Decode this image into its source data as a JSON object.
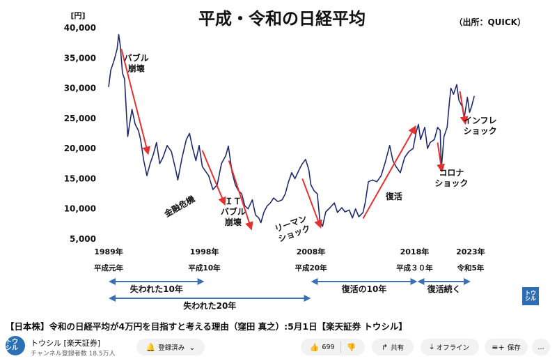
{
  "chart_data": {
    "type": "line",
    "title": "平成・令和の日経平均",
    "source": "（出所：QUICK）",
    "ylabel": "[円]",
    "ylim": [
      5000,
      40000
    ],
    "yticks": [
      5000,
      10000,
      15000,
      20000,
      25000,
      30000,
      35000,
      40000
    ],
    "ytick_labels": [
      "5,000",
      "10,000",
      "15,000",
      "20,000",
      "25,000",
      "30,000",
      "35,000",
      "40,000"
    ],
    "xlim": [
      1989,
      2023.4
    ],
    "xticks": [
      {
        "x": 1989,
        "year": "1989年",
        "era": "平成元年"
      },
      {
        "x": 1998,
        "year": "1998年",
        "era": "平成10年"
      },
      {
        "x": 2008,
        "year": "2008年",
        "era": "平成20年"
      },
      {
        "x": 2018,
        "year": "2018年",
        "era": "平成３０年"
      },
      {
        "x": 2023,
        "year": "2023年",
        "era": "令和5年"
      }
    ],
    "series": [
      {
        "color": "#1f2a6b",
        "points": [
          [
            1989.0,
            30200
          ],
          [
            1989.2,
            33000
          ],
          [
            1989.5,
            34500
          ],
          [
            1989.8,
            36500
          ],
          [
            1989.95,
            38900
          ],
          [
            1990.1,
            37000
          ],
          [
            1990.3,
            32500
          ],
          [
            1990.5,
            31500
          ],
          [
            1990.7,
            25000
          ],
          [
            1990.8,
            22000
          ],
          [
            1990.95,
            23800
          ],
          [
            1991.2,
            26500
          ],
          [
            1991.5,
            24000
          ],
          [
            1991.8,
            23000
          ],
          [
            1992.0,
            21500
          ],
          [
            1992.3,
            18000
          ],
          [
            1992.6,
            15500
          ],
          [
            1992.9,
            17500
          ],
          [
            1993.2,
            19000
          ],
          [
            1993.5,
            21000
          ],
          [
            1993.8,
            17500
          ],
          [
            1994.1,
            18500
          ],
          [
            1994.5,
            20500
          ],
          [
            1994.9,
            19500
          ],
          [
            1995.3,
            16500
          ],
          [
            1995.5,
            14800
          ],
          [
            1995.9,
            18500
          ],
          [
            1996.3,
            21500
          ],
          [
            1996.6,
            22500
          ],
          [
            1996.9,
            20000
          ],
          [
            1997.2,
            18000
          ],
          [
            1997.5,
            20500
          ],
          [
            1997.8,
            17000
          ],
          [
            1998.0,
            16500
          ],
          [
            1998.4,
            15500
          ],
          [
            1998.8,
            13200
          ],
          [
            1999.2,
            14000
          ],
          [
            1999.6,
            17500
          ],
          [
            2000.0,
            18800
          ],
          [
            2000.25,
            20400
          ],
          [
            2000.6,
            16000
          ],
          [
            2000.9,
            14000
          ],
          [
            2001.2,
            13000
          ],
          [
            2001.5,
            12500
          ],
          [
            2001.8,
            10500
          ],
          [
            2002.1,
            10000
          ],
          [
            2002.5,
            11500
          ],
          [
            2002.8,
            9000
          ],
          [
            2003.1,
            8500
          ],
          [
            2003.3,
            7700
          ],
          [
            2003.6,
            9500
          ],
          [
            2003.9,
            10500
          ],
          [
            2004.2,
            11000
          ],
          [
            2004.5,
            11800
          ],
          [
            2004.9,
            11200
          ],
          [
            2005.3,
            11500
          ],
          [
            2005.6,
            12500
          ],
          [
            2005.9,
            14500
          ],
          [
            2006.2,
            16000
          ],
          [
            2006.5,
            15000
          ],
          [
            2006.9,
            16500
          ],
          [
            2007.2,
            17500
          ],
          [
            2007.5,
            18200
          ],
          [
            2007.8,
            16500
          ],
          [
            2008.0,
            14000
          ],
          [
            2008.3,
            13000
          ],
          [
            2008.6,
            12500
          ],
          [
            2008.85,
            8000
          ],
          [
            2009.1,
            7100
          ],
          [
            2009.4,
            9500
          ],
          [
            2009.8,
            10200
          ],
          [
            2010.2,
            11000
          ],
          [
            2010.5,
            9400
          ],
          [
            2010.9,
            10200
          ],
          [
            2011.2,
            9500
          ],
          [
            2011.6,
            9800
          ],
          [
            2011.9,
            8500
          ],
          [
            2012.2,
            10000
          ],
          [
            2012.5,
            8700
          ],
          [
            2012.9,
            9400
          ],
          [
            2013.1,
            11000
          ],
          [
            2013.4,
            14500
          ],
          [
            2013.8,
            14800
          ],
          [
            2014.2,
            14500
          ],
          [
            2014.6,
            15500
          ],
          [
            2014.95,
            17500
          ],
          [
            2015.4,
            20500
          ],
          [
            2015.7,
            18000
          ],
          [
            2016.0,
            17000
          ],
          [
            2016.4,
            16000
          ],
          [
            2016.8,
            18500
          ],
          [
            2017.2,
            19500
          ],
          [
            2017.6,
            20000
          ],
          [
            2017.9,
            22800
          ],
          [
            2018.1,
            24000
          ],
          [
            2018.3,
            21500
          ],
          [
            2018.7,
            23500
          ],
          [
            2018.95,
            20000
          ],
          [
            2019.2,
            21000
          ],
          [
            2019.6,
            21500
          ],
          [
            2019.9,
            23500
          ],
          [
            2020.15,
            23000
          ],
          [
            2020.25,
            16500
          ],
          [
            2020.5,
            22000
          ],
          [
            2020.8,
            23500
          ],
          [
            2021.0,
            27500
          ],
          [
            2021.15,
            30000
          ],
          [
            2021.4,
            29000
          ],
          [
            2021.7,
            30600
          ],
          [
            2021.9,
            28000
          ],
          [
            2022.2,
            27000
          ],
          [
            2022.4,
            25000
          ],
          [
            2022.7,
            28500
          ],
          [
            2022.9,
            26000
          ],
          [
            2023.1,
            27000
          ],
          [
            2023.35,
            28700
          ]
        ]
      }
    ],
    "arrows": [
      {
        "from": [
          1990.2,
          36500
        ],
        "to": [
          1992.7,
          19200
        ]
      },
      {
        "from": [
          1997.8,
          19700
        ],
        "to": [
          1999.9,
          10800
        ]
      },
      {
        "from": [
          2000.3,
          18000
        ],
        "to": [
          2002.4,
          6700
        ]
      },
      {
        "from": [
          2007.2,
          15000
        ],
        "to": [
          2008.9,
          7000
        ]
      },
      {
        "from": [
          2012.9,
          8400
        ],
        "to": [
          2017.8,
          23600
        ]
      },
      {
        "from": [
          2019.9,
          21000
        ],
        "to": [
          2020.3,
          16300
        ]
      },
      {
        "from": [
          2022.0,
          29500
        ],
        "to": [
          2022.5,
          24200
        ]
      }
    ],
    "annotations": [
      {
        "lines": [
          "バブル",
          "崩壊"
        ],
        "x": 1991.6,
        "y": 34500
      },
      {
        "lines": [
          "金融危機"
        ],
        "x": 1995.8,
        "y": 10000,
        "rotate": -30
      },
      {
        "lines": [
          "ＩＴ",
          "バブル",
          "崩壊"
        ],
        "x": 2000.7,
        "y": 10800
      },
      {
        "lines": [
          "リーマン",
          "ショック"
        ],
        "x": 2006.2,
        "y": 7100,
        "rotate": -20
      },
      {
        "lines": [
          "復活"
        ],
        "x": 2015.8,
        "y": 11600
      },
      {
        "lines": [
          "コロナ",
          "ショック"
        ],
        "x": 2021.2,
        "y": 15500
      },
      {
        "lines": [
          "インフレ",
          "ショック"
        ],
        "x": 2023.9,
        "y": 24200
      }
    ],
    "periods": [
      {
        "label": "失われた10年",
        "from": 1989,
        "to": 1998,
        "row": 1
      },
      {
        "label": "失われた20年",
        "from": 1989,
        "to": 2008,
        "row": 2
      },
      {
        "label": "復活の10年",
        "from": 2008,
        "to": 2018,
        "row": 1
      },
      {
        "label": "復活続く",
        "from": 2018,
        "to": 2023,
        "row": 1
      }
    ],
    "line_color": "#1f2a6b",
    "arrow_color": "#e53030",
    "period_color": "#3b6fb0",
    "grid": false,
    "legend": "none"
  },
  "video": {
    "title": "【日本株】令和の日経平均が4万円を目指すと考える理由（窪田 真之）:5月1日【楽天証券 トウシル】"
  },
  "channel": {
    "avatar_text": "トウ シル",
    "name": "トウシル [楽天証券]",
    "subscribers": "チャンネル登録者数 18.5万人"
  },
  "actions": {
    "subscribe": "登録済み",
    "likes": "699",
    "share": "共有",
    "offline": "オフライン",
    "save": "保存",
    "more": "…"
  },
  "badge": {
    "text": "トウ シル"
  },
  "icons": [
    "bell-icon",
    "chevron-down-icon",
    "thumbs-up-icon",
    "thumbs-down-icon",
    "share-icon",
    "download-icon",
    "playlist-add-icon",
    "more-icon"
  ]
}
